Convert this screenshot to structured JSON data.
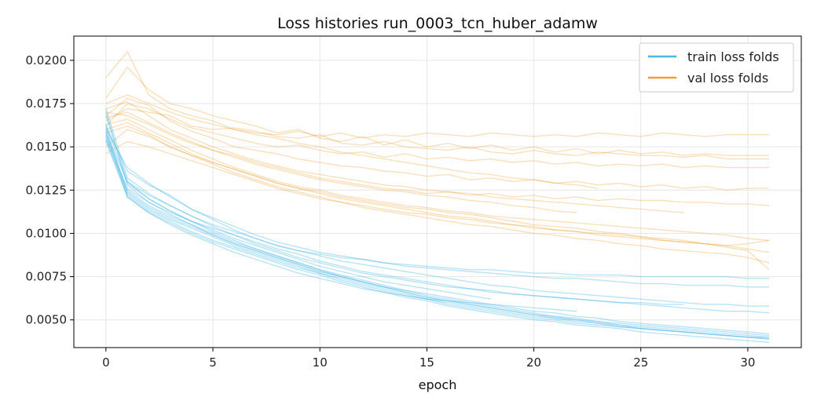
{
  "chart_data": {
    "type": "line",
    "title": "Loss histories run_0003_tcn_huber_adamw",
    "xlabel": "epoch",
    "ylabel": "",
    "xlim": [
      -1.5,
      32.5
    ],
    "ylim": [
      0.0034,
      0.0214
    ],
    "x_ticks": [
      0,
      5,
      10,
      15,
      20,
      25,
      30
    ],
    "y_ticks": [
      0.005,
      0.0075,
      0.01,
      0.0125,
      0.015,
      0.0175,
      0.02
    ],
    "x_tick_labels": [
      "0",
      "5",
      "10",
      "15",
      "20",
      "25",
      "30"
    ],
    "y_tick_labels": [
      "0.0050",
      "0.0075",
      "0.0100",
      "0.0125",
      "0.0150",
      "0.0175",
      "0.0200"
    ],
    "grid": true,
    "legend": {
      "placement": "top-right",
      "entries": [
        {
          "label": "train loss folds",
          "color": "#4ab8e8"
        },
        {
          "label": "val loss folds",
          "color": "#f0a030"
        }
      ]
    },
    "colors": {
      "train": "#4ab8e8",
      "val": "#f0a030"
    },
    "series": [
      {
        "group": "train",
        "x_start": 0,
        "values": [
          0.0162,
          0.0136,
          0.0128,
          0.0122,
          0.0114,
          0.0108,
          0.0102,
          0.0097,
          0.0093,
          0.009,
          0.0088,
          0.0086,
          0.0085,
          0.0083,
          0.0082,
          0.0081,
          0.008,
          0.0079,
          0.0079,
          0.0078,
          0.0077,
          0.0077,
          0.0076,
          0.0076,
          0.0076,
          0.0075,
          0.0075,
          0.0075,
          0.0075,
          0.0075,
          0.0074,
          0.0074
        ]
      },
      {
        "group": "train",
        "x_start": 0,
        "values": [
          0.016,
          0.0138,
          0.0129,
          0.0121,
          0.0114,
          0.0109,
          0.0104,
          0.0099,
          0.0095,
          0.0092,
          0.0089,
          0.0087,
          0.0085,
          0.0083,
          0.0081,
          0.008,
          0.0079,
          0.0078,
          0.0077,
          0.0076,
          0.0075,
          0.0074,
          0.0074,
          0.0073,
          0.0072,
          0.0071,
          0.0071,
          0.007,
          0.007,
          0.007,
          0.0069,
          0.0069
        ]
      },
      {
        "group": "train",
        "x_start": 0,
        "values": [
          0.0158,
          0.013,
          0.0122,
          0.0116,
          0.011,
          0.0105,
          0.0101,
          0.0097,
          0.0093,
          0.009,
          0.0087,
          0.0084,
          0.0082,
          0.008,
          0.0078,
          0.0076,
          0.0074,
          0.0072,
          0.007,
          0.0069,
          0.0067,
          0.0066,
          0.0065,
          0.0064,
          0.0063,
          0.0062,
          0.0061,
          0.006,
          0.0059,
          0.0059,
          0.0058,
          0.0058
        ]
      },
      {
        "group": "train",
        "x_start": 0,
        "values": [
          0.0157,
          0.0126,
          0.0118,
          0.0112,
          0.0107,
          0.0103,
          0.0099,
          0.0095,
          0.0091,
          0.0088,
          0.0084,
          0.0081,
          0.0078,
          0.0076,
          0.0074,
          0.0072,
          0.007,
          0.0068,
          0.0067,
          0.0065,
          0.0064,
          0.0063,
          0.0062,
          0.0061,
          0.006,
          0.0059,
          0.0058,
          0.0057,
          0.0056,
          0.0055,
          0.0055,
          0.0054
        ]
      },
      {
        "group": "train",
        "x_start": 0,
        "values": [
          0.0156,
          0.0125,
          0.0116,
          0.011,
          0.0105,
          0.01,
          0.0095,
          0.0091,
          0.0087,
          0.0083,
          0.0079,
          0.0076,
          0.0073,
          0.007,
          0.0067,
          0.0065,
          0.0063,
          0.0061,
          0.0059,
          0.0057,
          0.0055,
          0.0054,
          0.0052,
          0.0051,
          0.0049,
          0.0048,
          0.0047,
          0.0046,
          0.0045,
          0.0044,
          0.0043,
          0.0042
        ]
      },
      {
        "group": "train",
        "x_start": 0,
        "values": [
          0.0155,
          0.0124,
          0.0115,
          0.0109,
          0.0104,
          0.0099,
          0.0094,
          0.009,
          0.0086,
          0.0082,
          0.0078,
          0.0075,
          0.0072,
          0.0069,
          0.0066,
          0.0063,
          0.0061,
          0.0059,
          0.0057,
          0.0055,
          0.0053,
          0.0052,
          0.005,
          0.0049,
          0.0047,
          0.0046,
          0.0045,
          0.0044,
          0.0043,
          0.0042,
          0.0041,
          0.004
        ]
      },
      {
        "group": "train",
        "x_start": 0,
        "values": [
          0.0161,
          0.0123,
          0.0114,
          0.0108,
          0.0103,
          0.0098,
          0.0093,
          0.0089,
          0.0085,
          0.0081,
          0.0077,
          0.0074,
          0.0071,
          0.0068,
          0.0065,
          0.0062,
          0.006,
          0.0058,
          0.0056,
          0.0054,
          0.0052,
          0.0051,
          0.0049,
          0.0048,
          0.0046,
          0.0045,
          0.0044,
          0.0043,
          0.0042,
          0.0041,
          0.004,
          0.0039
        ]
      },
      {
        "group": "train",
        "x_start": 0,
        "values": [
          0.0154,
          0.0122,
          0.0113,
          0.0107,
          0.0101,
          0.0096,
          0.0092,
          0.0088,
          0.0084,
          0.008,
          0.0077,
          0.0073,
          0.007,
          0.0067,
          0.0064,
          0.0062,
          0.0059,
          0.0057,
          0.0055,
          0.0053,
          0.0051,
          0.005,
          0.0048,
          0.0047,
          0.0046,
          0.0045,
          0.0044,
          0.0043,
          0.0042,
          0.0041,
          0.004,
          0.004
        ]
      },
      {
        "group": "train",
        "x_start": 0,
        "values": [
          0.0168,
          0.013,
          0.012,
          0.0113,
          0.0107,
          0.0101,
          0.0096,
          0.0091,
          0.0087,
          0.0083,
          0.0079,
          0.0075,
          0.0072,
          0.0069,
          0.0066,
          0.0063,
          0.0061,
          0.0059,
          0.0057,
          0.0055,
          0.0053,
          0.0051,
          0.005,
          0.0048,
          0.0047,
          0.0045,
          0.0044,
          0.0043,
          0.0042,
          0.0041,
          0.004,
          0.0039
        ]
      },
      {
        "group": "train",
        "x_start": 0,
        "values": [
          0.0153,
          0.0121,
          0.0112,
          0.0106,
          0.01,
          0.0095,
          0.0091,
          0.0087,
          0.0083,
          0.0079,
          0.0076,
          0.0072,
          0.0069,
          0.0066,
          0.0063,
          0.0061,
          0.0058,
          0.0056,
          0.0054,
          0.0052,
          0.005,
          0.0049,
          0.0047,
          0.0046,
          0.0045,
          0.0043,
          0.0042,
          0.0041,
          0.004,
          0.0039,
          0.0038,
          0.0037
        ]
      },
      {
        "group": "train",
        "x_start": 0,
        "values": [
          0.017,
          0.0128,
          0.0118,
          0.0111,
          0.0105,
          0.0099,
          0.0094,
          0.009,
          0.0086,
          0.0082,
          0.0078,
          0.0075,
          0.0072,
          0.0069,
          0.0067,
          0.0064,
          0.0062,
          0.006,
          0.0058,
          0.0056,
          0.0054,
          0.0052,
          0.0051,
          0.0049,
          0.0048,
          0.0047,
          0.0046,
          0.0045,
          0.0044,
          0.0043,
          0.0042,
          0.0041
        ]
      },
      {
        "group": "train",
        "x_start": 0,
        "values": [
          0.0159,
          0.0121,
          0.0112,
          0.0105,
          0.0099,
          0.0094,
          0.0089,
          0.0085,
          0.0081,
          0.0077,
          0.0074,
          0.0071,
          0.0068,
          0.0066,
          0.0064,
          0.0062,
          0.0061,
          0.006,
          0.0059,
          0.0058,
          0.0057,
          0.0056,
          0.0055
        ]
      },
      {
        "group": "train",
        "x_start": 0,
        "values": [
          0.0163,
          0.0129,
          0.012,
          0.0113,
          0.0107,
          0.0102,
          0.0097,
          0.0093,
          0.0089,
          0.0085,
          0.0081,
          0.0078,
          0.0075,
          0.0072,
          0.007,
          0.0068,
          0.0066,
          0.0064,
          0.0062
        ]
      },
      {
        "group": "train",
        "x_start": 0,
        "values": [
          0.0172,
          0.0132,
          0.0123,
          0.0116,
          0.011,
          0.0104,
          0.0099,
          0.0094,
          0.009,
          0.0086,
          0.0083,
          0.008,
          0.0077,
          0.0075,
          0.0073,
          0.0071,
          0.0069,
          0.0068,
          0.0066,
          0.0065,
          0.0064,
          0.0063,
          0.0062,
          0.0061,
          0.006,
          0.006,
          0.0059,
          0.0059
        ]
      },
      {
        "group": "val",
        "x_start": 0,
        "values": [
          0.019,
          0.0205,
          0.018,
          0.0172,
          0.0168,
          0.0165,
          0.016,
          0.0158,
          0.0157,
          0.0159,
          0.0156,
          0.0158,
          0.0155,
          0.0157,
          0.0156,
          0.0158,
          0.0157,
          0.0156,
          0.0158,
          0.0157,
          0.0156,
          0.0157,
          0.0156,
          0.0158,
          0.0157,
          0.0156,
          0.0158,
          0.0157,
          0.0156,
          0.0157,
          0.0157,
          0.0157
        ]
      },
      {
        "group": "val",
        "x_start": 0,
        "values": [
          0.0178,
          0.0196,
          0.0183,
          0.0175,
          0.0172,
          0.0168,
          0.0165,
          0.0162,
          0.0158,
          0.016,
          0.0155,
          0.0153,
          0.0156,
          0.0151,
          0.0154,
          0.015,
          0.0152,
          0.0149,
          0.0151,
          0.0148,
          0.015,
          0.0147,
          0.0149,
          0.0146,
          0.0148,
          0.0146,
          0.0147,
          0.0145,
          0.0146,
          0.0145,
          0.0145,
          0.0145
        ]
      },
      {
        "group": "val",
        "x_start": 0,
        "values": [
          0.0165,
          0.0172,
          0.017,
          0.0168,
          0.0162,
          0.016,
          0.0161,
          0.0159,
          0.0156,
          0.0155,
          0.0157,
          0.0152,
          0.0151,
          0.0153,
          0.015,
          0.0149,
          0.0148,
          0.015,
          0.0147,
          0.0146,
          0.0148,
          0.0146,
          0.0145,
          0.0147,
          0.0146,
          0.0145,
          0.0145,
          0.0144,
          0.0145,
          0.0143,
          0.0143,
          0.0143
        ]
      },
      {
        "group": "val",
        "x_start": 0,
        "values": [
          0.0162,
          0.0175,
          0.0172,
          0.0166,
          0.0161,
          0.0158,
          0.0155,
          0.0152,
          0.015,
          0.0151,
          0.0148,
          0.0146,
          0.0147,
          0.0144,
          0.0146,
          0.0143,
          0.0144,
          0.0142,
          0.0143,
          0.0141,
          0.0142,
          0.014,
          0.0141,
          0.0139,
          0.014,
          0.0139,
          0.014,
          0.0138,
          0.0139,
          0.0138,
          0.0138,
          0.0138
        ]
      },
      {
        "group": "val",
        "x_start": 0,
        "values": [
          0.0168,
          0.0178,
          0.0174,
          0.0165,
          0.0159,
          0.0155,
          0.015,
          0.0148,
          0.0146,
          0.0143,
          0.0141,
          0.0139,
          0.0138,
          0.0136,
          0.0135,
          0.0133,
          0.0134,
          0.0131,
          0.0132,
          0.013,
          0.0131,
          0.0129,
          0.013,
          0.0128,
          0.0129,
          0.0127,
          0.0128,
          0.0126,
          0.0127,
          0.0125,
          0.0126,
          0.0126
        ]
      },
      {
        "group": "val",
        "x_start": 0,
        "values": [
          0.017,
          0.0168,
          0.0163,
          0.0157,
          0.0152,
          0.0148,
          0.0145,
          0.0141,
          0.0138,
          0.0135,
          0.0132,
          0.013,
          0.0128,
          0.0126,
          0.0125,
          0.0123,
          0.0124,
          0.0122,
          0.0123,
          0.0121,
          0.0122,
          0.012,
          0.0121,
          0.0119,
          0.012,
          0.0119,
          0.0119,
          0.0118,
          0.0118,
          0.0117,
          0.0117,
          0.0116
        ]
      },
      {
        "group": "val",
        "x_start": 0,
        "values": [
          0.0163,
          0.0166,
          0.016,
          0.0154,
          0.0148,
          0.0143,
          0.0138,
          0.0134,
          0.013,
          0.0127,
          0.0125,
          0.0122,
          0.012,
          0.0118,
          0.0116,
          0.0115,
          0.0113,
          0.0112,
          0.011,
          0.0109,
          0.0108,
          0.0107,
          0.0106,
          0.0105,
          0.0104,
          0.0103,
          0.0102,
          0.0101,
          0.01,
          0.0099,
          0.0097,
          0.0096
        ]
      },
      {
        "group": "val",
        "x_start": 0,
        "values": [
          0.016,
          0.0164,
          0.0158,
          0.0152,
          0.0146,
          0.0141,
          0.0137,
          0.0133,
          0.0129,
          0.0126,
          0.0124,
          0.0121,
          0.0119,
          0.0117,
          0.0115,
          0.0114,
          0.0112,
          0.0111,
          0.0109,
          0.0107,
          0.0105,
          0.0104,
          0.0103,
          0.0101,
          0.01,
          0.0098,
          0.0097,
          0.0096,
          0.0094,
          0.0093,
          0.0094,
          0.0096
        ]
      },
      {
        "group": "val",
        "x_start": 0,
        "values": [
          0.0158,
          0.0162,
          0.0157,
          0.015,
          0.0145,
          0.014,
          0.0135,
          0.0131,
          0.0127,
          0.0124,
          0.0121,
          0.0118,
          0.0116,
          0.0114,
          0.0112,
          0.0111,
          0.0109,
          0.0108,
          0.0106,
          0.0105,
          0.0103,
          0.0102,
          0.0101,
          0.01,
          0.0099,
          0.0098,
          0.0096,
          0.0095,
          0.0094,
          0.0093,
          0.0091,
          0.0089
        ]
      },
      {
        "group": "val",
        "x_start": 0,
        "values": [
          0.0146,
          0.0153,
          0.015,
          0.0146,
          0.0142,
          0.0138,
          0.0134,
          0.013,
          0.0126,
          0.0123,
          0.012,
          0.0118,
          0.0115,
          0.0113,
          0.0111,
          0.0109,
          0.0107,
          0.0105,
          0.0104,
          0.0102,
          0.01,
          0.0099,
          0.0097,
          0.0096,
          0.0094,
          0.0093,
          0.0091,
          0.009,
          0.0089,
          0.0088,
          0.0086,
          0.0083
        ]
      },
      {
        "group": "val",
        "x_start": 0,
        "values": [
          0.015,
          0.016,
          0.0156,
          0.015,
          0.0145,
          0.0141,
          0.0137,
          0.0133,
          0.0129,
          0.0126,
          0.0123,
          0.012,
          0.0118,
          0.0116,
          0.0114,
          0.0112,
          0.011,
          0.0109,
          0.0107,
          0.0105,
          0.0104,
          0.0102,
          0.0101,
          0.0099,
          0.0098,
          0.0097,
          0.0096,
          0.0095,
          0.0094,
          0.0092,
          0.009,
          0.0079
        ]
      },
      {
        "group": "val",
        "x_start": 0,
        "values": [
          0.0167,
          0.017,
          0.0164,
          0.0158,
          0.0153,
          0.0148,
          0.0144,
          0.014,
          0.0137,
          0.0134,
          0.0131,
          0.0129,
          0.0127,
          0.0125,
          0.0124,
          0.0122,
          0.0121,
          0.0119,
          0.0118,
          0.0116,
          0.0115,
          0.0113,
          0.0112
        ]
      },
      {
        "group": "val",
        "x_start": 0,
        "values": [
          0.0172,
          0.0176,
          0.0168,
          0.016,
          0.0155,
          0.015,
          0.0146,
          0.0142,
          0.0139,
          0.0136,
          0.0134,
          0.0132,
          0.013,
          0.0128,
          0.0127,
          0.0125,
          0.0124,
          0.0123,
          0.0121,
          0.012,
          0.0119,
          0.0118,
          0.0117,
          0.0116,
          0.0115,
          0.0114,
          0.0113,
          0.0112
        ]
      },
      {
        "group": "val",
        "x_start": 0,
        "values": [
          0.0175,
          0.018,
          0.0175,
          0.017,
          0.0166,
          0.0163,
          0.016,
          0.0157,
          0.0155,
          0.0152,
          0.015,
          0.0147,
          0.0145,
          0.0143,
          0.0141,
          0.0139,
          0.0137,
          0.0135,
          0.0134,
          0.0132,
          0.0131,
          0.0129,
          0.0128,
          0.0126
        ]
      }
    ]
  }
}
